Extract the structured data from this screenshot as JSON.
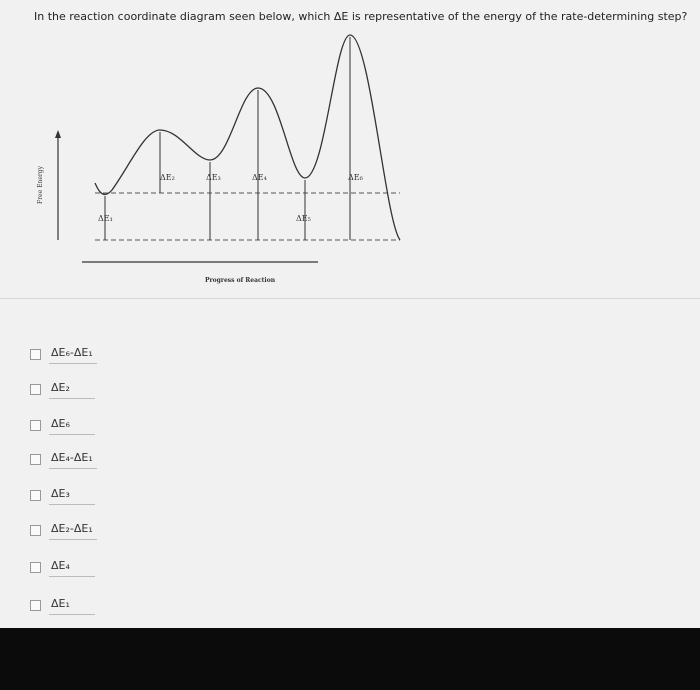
{
  "question": "In the reaction coordinate diagram seen below, which ΔE is representative of the energy of the rate-determining step?",
  "diagram": {
    "y_axis_label": "Free Energy",
    "x_axis_label": "Progress of Reaction",
    "labels": [
      "ΔE₁",
      "ΔE₂",
      "ΔE₃",
      "ΔE₄",
      "ΔE₅",
      "ΔE₆"
    ]
  },
  "options": [
    "ΔE₆-ΔE₁",
    "ΔE₂",
    "ΔE₆",
    "ΔE₄-ΔE₁",
    "ΔE₃",
    "ΔE₂-ΔE₁",
    "ΔE₄",
    "ΔE₁"
  ]
}
